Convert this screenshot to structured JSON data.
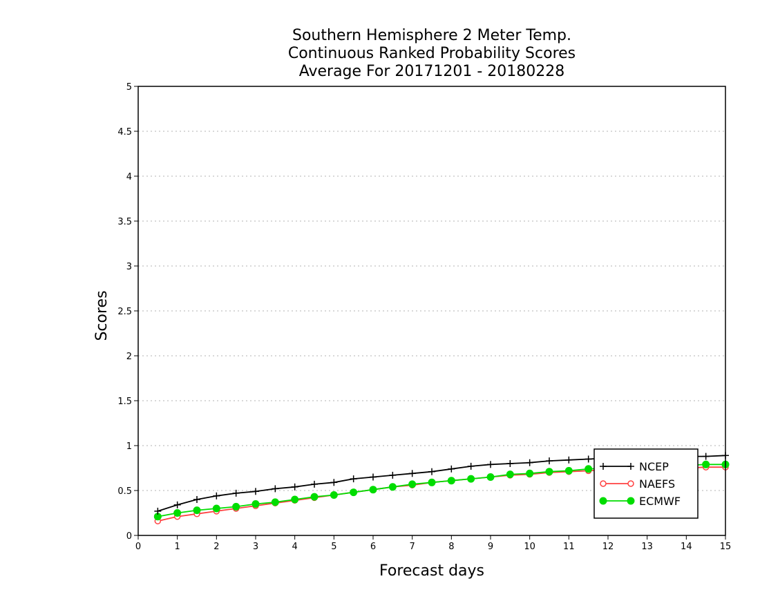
{
  "chart_data": {
    "type": "line",
    "title": [
      "Southern Hemisphere 2 Meter Temp.",
      "Continuous Ranked Probability Scores",
      "Average For 20171201 - 20180228"
    ],
    "xlabel": "Forecast days",
    "ylabel": "Scores",
    "xlim": [
      0,
      15
    ],
    "ylim": [
      0,
      5
    ],
    "x_ticks": [
      "0",
      "1",
      "2",
      "3",
      "4",
      "5",
      "6",
      "7",
      "8",
      "9",
      "10",
      "11",
      "12",
      "13",
      "14",
      "15"
    ],
    "y_ticks": [
      "0",
      "0.5",
      "1",
      "1.5",
      "2",
      "2.5",
      "3",
      "3.5",
      "4",
      "4.5",
      "5"
    ],
    "grid": "horizontal dotted",
    "legend_position": "bottom-right",
    "x": [
      0.5,
      1,
      1.5,
      2,
      2.5,
      3,
      3.5,
      4,
      4.5,
      5,
      5.5,
      6,
      6.5,
      7,
      7.5,
      8,
      8.5,
      9,
      9.5,
      10,
      10.5,
      11,
      11.5,
      12,
      12.5,
      13,
      13.5,
      14,
      14.5,
      15
    ],
    "series": [
      {
        "name": "NCEP",
        "color": "#000000",
        "marker": "plus",
        "values": [
          0.27,
          0.34,
          0.4,
          0.44,
          0.47,
          0.49,
          0.52,
          0.54,
          0.57,
          0.59,
          0.63,
          0.65,
          0.67,
          0.69,
          0.71,
          0.74,
          0.77,
          0.79,
          0.8,
          0.81,
          0.83,
          0.84,
          0.85,
          0.86,
          0.86,
          0.87,
          0.87,
          0.88,
          0.88,
          0.89
        ]
      },
      {
        "name": "NAEFS",
        "color": "#ff4040",
        "marker": "open-circle",
        "values": [
          0.16,
          0.21,
          0.24,
          0.27,
          0.3,
          0.33,
          0.36,
          0.39,
          0.42,
          0.45,
          0.48,
          0.51,
          0.54,
          0.56,
          0.59,
          0.61,
          0.63,
          0.65,
          0.67,
          0.68,
          0.7,
          0.71,
          0.72,
          0.73,
          0.73,
          0.74,
          0.74,
          0.75,
          0.76,
          0.76
        ]
      },
      {
        "name": "ECMWF",
        "color": "#00dd00",
        "marker": "filled-circle",
        "values": [
          0.21,
          0.25,
          0.28,
          0.3,
          0.32,
          0.35,
          0.37,
          0.4,
          0.43,
          0.45,
          0.48,
          0.51,
          0.54,
          0.57,
          0.59,
          0.61,
          0.63,
          0.65,
          0.68,
          0.69,
          0.71,
          0.72,
          0.74,
          0.75,
          0.76,
          0.76,
          0.77,
          0.78,
          0.79,
          0.79
        ]
      }
    ]
  }
}
